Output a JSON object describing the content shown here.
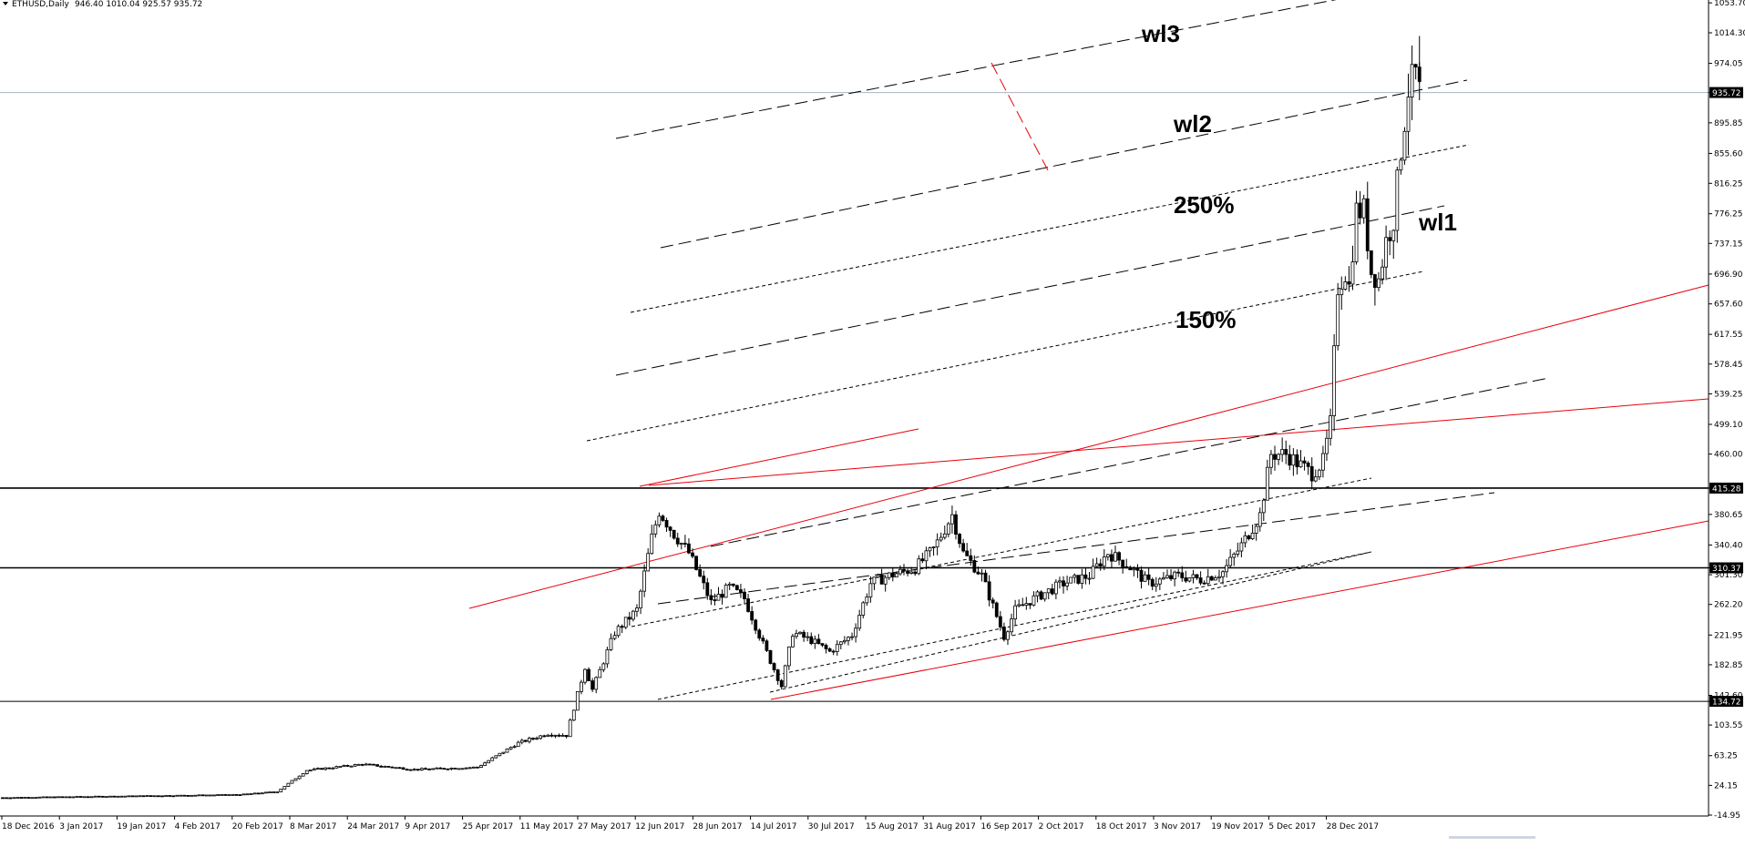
{
  "header": {
    "symbol": "ETHUSD,Daily",
    "ohlc": "946.40 1010.04 925.57 935.72"
  },
  "chart_data": {
    "type": "candlestick",
    "title": "ETHUSD,Daily",
    "xlabel": "",
    "ylabel": "",
    "ylim": [
      -14.95,
      1053.7
    ],
    "date_range": [
      "2016-12-18",
      "2018-01-04"
    ],
    "x_ticks": [
      "18 Dec 2016",
      "3 Jan 2017",
      "19 Jan 2017",
      "4 Feb 2017",
      "20 Feb 2017",
      "8 Mar 2017",
      "24 Mar 2017",
      "9 Apr 2017",
      "25 Apr 2017",
      "11 May 2017",
      "27 May 2017",
      "12 Jun 2017",
      "28 Jun 2017",
      "14 Jul 2017",
      "30 Jul 2017",
      "15 Aug 2017",
      "31 Aug 2017",
      "16 Sep 2017",
      "2 Oct 2017",
      "18 Oct 2017",
      "3 Nov 2017",
      "19 Nov 2017",
      "5 Dec 2017",
      "28 Dec 2017"
    ],
    "y_ticks": [
      "1053.70",
      "1014.30",
      "974.05",
      "935.72",
      "895.85",
      "855.60",
      "816.25",
      "776.25",
      "737.15",
      "696.90",
      "657.60",
      "617.55",
      "578.45",
      "539.25",
      "499.10",
      "460.00",
      "415.28",
      "380.65",
      "340.40",
      "310.37",
      "301.30",
      "262.20",
      "221.95",
      "182.85",
      "142.60",
      "134.72",
      "103.55",
      "63.25",
      "24.15",
      "-14.95"
    ],
    "current_price": "935.72",
    "horizontal_levels": [
      "415.28",
      "310.37",
      "134.72"
    ],
    "annotations": [
      "wl3",
      "wl2",
      "250%",
      "wl1",
      "150%"
    ],
    "grid": false,
    "colors": {
      "candle": "#000000",
      "channel_red": "#e8000b",
      "lines_black": "#000000",
      "price_line": "#a9b4c0"
    },
    "price_path": [
      [
        "2016-12-18",
        8
      ],
      [
        "2017-01-20",
        10
      ],
      [
        "2017-02-20",
        12
      ],
      [
        "2017-03-02",
        16
      ],
      [
        "2017-03-10",
        44
      ],
      [
        "2017-03-25",
        52
      ],
      [
        "2017-04-08",
        45
      ],
      [
        "2017-04-25",
        48
      ],
      [
        "2017-05-06",
        80
      ],
      [
        "2017-05-14",
        92
      ],
      [
        "2017-05-19",
        90
      ],
      [
        "2017-05-24",
        180
      ],
      [
        "2017-05-26",
        150
      ],
      [
        "2017-06-01",
        225
      ],
      [
        "2017-06-07",
        255
      ],
      [
        "2017-06-11",
        350
      ],
      [
        "2017-06-13",
        385
      ],
      [
        "2017-06-17",
        355
      ],
      [
        "2017-06-21",
        330
      ],
      [
        "2017-06-27",
        265
      ],
      [
        "2017-07-02",
        285
      ],
      [
        "2017-07-06",
        270
      ],
      [
        "2017-07-11",
        210
      ],
      [
        "2017-07-16",
        155
      ],
      [
        "2017-07-19",
        225
      ],
      [
        "2017-07-24",
        215
      ],
      [
        "2017-07-29",
        200
      ],
      [
        "2017-08-04",
        222
      ],
      [
        "2017-08-09",
        290
      ],
      [
        "2017-08-14",
        300
      ],
      [
        "2017-08-21",
        310
      ],
      [
        "2017-08-26",
        335
      ],
      [
        "2017-08-31",
        380
      ],
      [
        "2017-09-03",
        330
      ],
      [
        "2017-09-08",
        300
      ],
      [
        "2017-09-14",
        220
      ],
      [
        "2017-09-17",
        255
      ],
      [
        "2017-09-22",
        270
      ],
      [
        "2017-09-30",
        290
      ],
      [
        "2017-10-07",
        300
      ],
      [
        "2017-10-12",
        330
      ],
      [
        "2017-10-17",
        315
      ],
      [
        "2017-10-23",
        290
      ],
      [
        "2017-10-31",
        300
      ],
      [
        "2017-11-06",
        295
      ],
      [
        "2017-11-12",
        305
      ],
      [
        "2017-11-17",
        340
      ],
      [
        "2017-11-22",
        380
      ],
      [
        "2017-11-25",
        460
      ],
      [
        "2017-11-29",
        460
      ],
      [
        "2017-12-03",
        445
      ],
      [
        "2017-12-06",
        435
      ],
      [
        "2017-12-09",
        450
      ],
      [
        "2017-12-11",
        500
      ],
      [
        "2017-12-13",
        680
      ],
      [
        "2017-12-15",
        700
      ],
      [
        "2017-12-16",
        680
      ],
      [
        "2017-12-18",
        780
      ],
      [
        "2017-12-20",
        780
      ],
      [
        "2017-12-22",
        700
      ],
      [
        "2017-12-24",
        690
      ],
      [
        "2017-12-26",
        740
      ],
      [
        "2017-12-28",
        770
      ],
      [
        "2017-12-30",
        860
      ],
      [
        "2018-01-01",
        940
      ],
      [
        "2018-01-03",
        960
      ],
      [
        "2018-01-04",
        935.72
      ]
    ]
  }
}
